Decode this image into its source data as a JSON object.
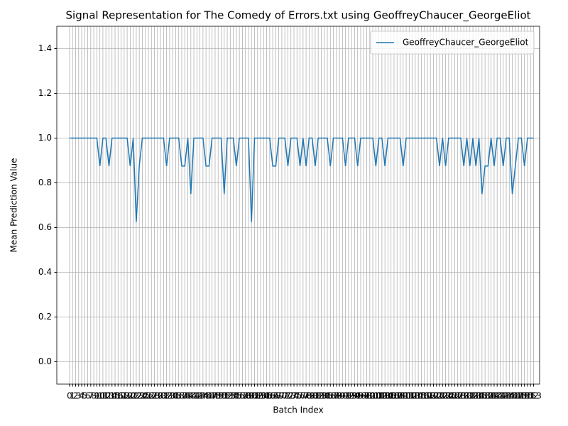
{
  "chart_data": {
    "type": "line",
    "title": "Signal Representation for The Comedy of Errors.txt using GeoffreyChaucer_GeorgeEliot",
    "x_label": "Batch Index",
    "y_label": "Mean Prediction Value",
    "x": [
      0,
      1,
      2,
      3,
      4,
      5,
      6,
      7,
      8,
      9,
      10,
      11,
      12,
      13,
      14,
      15,
      16,
      17,
      18,
      19,
      20,
      21,
      22,
      23,
      24,
      25,
      26,
      27,
      28,
      29,
      30,
      31,
      32,
      33,
      34,
      35,
      36,
      37,
      38,
      39,
      40,
      41,
      42,
      43,
      44,
      45,
      46,
      47,
      48,
      49,
      50,
      51,
      52,
      53,
      54,
      55,
      56,
      57,
      58,
      59,
      60,
      61,
      62,
      63,
      64,
      65,
      66,
      67,
      68,
      69,
      70,
      71,
      72,
      73,
      74,
      75,
      76,
      77,
      78,
      79,
      80,
      81,
      82,
      83,
      84,
      85,
      86,
      87,
      88,
      89,
      90,
      91,
      92,
      93,
      94,
      95,
      96,
      97,
      98,
      99,
      100,
      101,
      102,
      103,
      104,
      105,
      106,
      107,
      108,
      109,
      110,
      111,
      112,
      113,
      114,
      115,
      116,
      117,
      118,
      119,
      120,
      121,
      122,
      123,
      124,
      125,
      126,
      127,
      128,
      129,
      130,
      131,
      132,
      133,
      134,
      135,
      136,
      137,
      138,
      139,
      140,
      141,
      142,
      143,
      144,
      145,
      146,
      147,
      148,
      149,
      150,
      151,
      152,
      153
    ],
    "series": [
      {
        "name": "GeoffreyChaucer_GeorgeEliot",
        "color": "#1f77b4",
        "values": [
          1,
          1,
          1,
          1,
          1,
          1,
          1,
          1,
          1,
          1,
          0.875,
          1,
          1,
          0.875,
          1,
          1,
          1,
          1,
          1,
          1,
          0.875,
          1,
          0.625,
          0.875,
          1,
          1,
          1,
          1,
          1,
          1,
          1,
          1,
          0.875,
          1,
          1,
          1,
          1,
          0.875,
          0.875,
          1,
          0.75,
          1,
          1,
          1,
          1,
          0.875,
          0.875,
          1,
          1,
          1,
          1,
          0.75,
          1,
          1,
          1,
          0.875,
          1,
          1,
          1,
          1,
          0.625,
          1,
          1,
          1,
          1,
          1,
          1,
          0.875,
          0.875,
          1,
          1,
          1,
          0.875,
          1,
          1,
          1,
          0.875,
          1,
          0.875,
          1,
          1,
          0.875,
          1,
          1,
          1,
          1,
          0.875,
          1,
          1,
          1,
          1,
          0.875,
          1,
          1,
          1,
          0.875,
          1,
          1,
          1,
          1,
          1,
          0.875,
          1,
          1,
          0.875,
          1,
          1,
          1,
          1,
          1,
          0.875,
          1,
          1,
          1,
          1,
          1,
          1,
          1,
          1,
          1,
          1,
          1,
          0.875,
          1,
          0.875,
          1,
          1,
          1,
          1,
          1,
          0.875,
          1,
          0.875,
          1,
          0.875,
          1,
          0.75,
          0.875,
          0.875,
          1,
          0.875,
          1,
          1,
          0.875,
          1,
          1,
          0.75,
          0.875,
          1,
          1,
          0.875,
          1,
          1,
          1
        ]
      }
    ],
    "xlim": [
      -4.2,
      155
    ],
    "xticks": [
      0,
      1,
      2,
      3,
      4,
      5,
      6,
      7,
      8,
      9,
      10,
      11,
      12,
      13,
      14,
      15,
      16,
      17,
      18,
      19,
      20,
      21,
      22,
      23,
      24,
      25,
      26,
      27,
      28,
      29,
      30,
      31,
      32,
      33,
      34,
      35,
      36,
      37,
      38,
      39,
      40,
      41,
      42,
      43,
      44,
      45,
      46,
      47,
      48,
      49,
      50,
      51,
      52,
      53,
      54,
      55,
      56,
      57,
      58,
      59,
      60,
      61,
      62,
      63,
      64,
      65,
      66,
      67,
      68,
      69,
      70,
      71,
      72,
      73,
      74,
      75,
      76,
      77,
      78,
      79,
      80,
      81,
      82,
      83,
      84,
      85,
      86,
      87,
      88,
      89,
      90,
      91,
      92,
      93,
      94,
      95,
      96,
      97,
      98,
      99,
      100,
      101,
      102,
      103,
      104,
      105,
      106,
      107,
      108,
      109,
      110,
      111,
      112,
      113,
      114,
      115,
      116,
      117,
      118,
      119,
      120,
      121,
      122,
      123,
      124,
      125,
      126,
      127,
      128,
      129,
      130,
      131,
      132,
      133,
      134,
      135,
      136,
      137,
      138,
      139,
      140,
      141,
      142,
      143,
      144,
      145,
      146,
      147,
      148,
      149,
      150,
      151,
      152,
      153
    ],
    "ylim": [
      -0.1,
      1.5
    ],
    "yticks": [
      {
        "value": 0,
        "label": "0.0"
      },
      0.2,
      0.4,
      0.6,
      0.8,
      {
        "value": 1,
        "label": "1.0"
      },
      1.2,
      1.4
    ],
    "grid": true,
    "legend": "upper right"
  }
}
